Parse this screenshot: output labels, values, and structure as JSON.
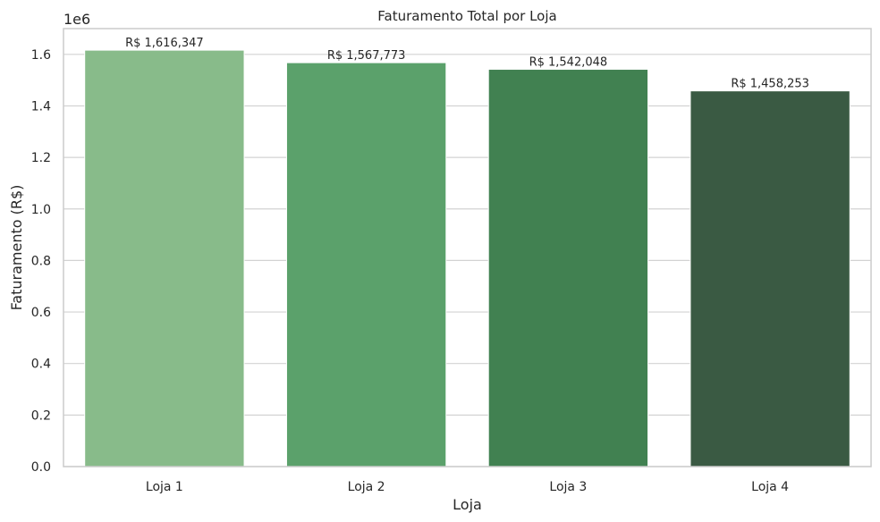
{
  "chart_data": {
    "type": "bar",
    "title": "Faturamento Total por Loja",
    "xlabel": "Loja",
    "ylabel": "Faturamento (R$)",
    "y_offset_label": "1e6",
    "categories": [
      "Loja 1",
      "Loja 2",
      "Loja 3",
      "Loja 4"
    ],
    "values": [
      1616347,
      1567773,
      1542048,
      1458253
    ],
    "data_labels": [
      "R$ 1,616,347",
      "R$ 1,567,773",
      "R$ 1,542,048",
      "R$ 1,458,253"
    ],
    "colors": [
      "#88bb8a",
      "#5ba16b",
      "#418151",
      "#3a5a43"
    ],
    "ylim": [
      0,
      1700000
    ],
    "yticks": [
      0,
      200000,
      400000,
      600000,
      800000,
      1000000,
      1200000,
      1400000,
      1600000
    ],
    "ytick_labels": [
      "0.0",
      "0.2",
      "0.4",
      "0.6",
      "0.8",
      "1.0",
      "1.2",
      "1.4",
      "1.6"
    ],
    "grid": true,
    "grid_axis": "y",
    "legend": false
  }
}
